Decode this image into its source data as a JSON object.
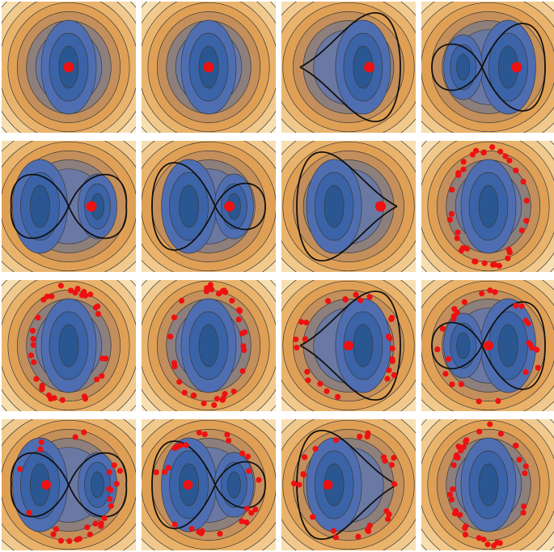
{
  "figure": {
    "palette": {
      "contour_levels": [
        "#fcefd2",
        "#f8dfb1",
        "#f1c98c",
        "#e9b36c",
        "#dfa055",
        "#c48f5b",
        "#8d7f7c",
        "#6a78a4",
        "#4f6eb2",
        "#3a63a8",
        "#2a5791"
      ],
      "contour_line": "#3a3a3a",
      "separatrix": "#111111",
      "point": "#ee1111"
    },
    "panels": [
      {
        "row": 0,
        "col": 0,
        "well_offset": 0.0,
        "curve": "none",
        "marker": "single",
        "marker_pos": [
          0.0,
          0.0
        ]
      },
      {
        "row": 0,
        "col": 1,
        "well_offset": 0.0,
        "curve": "none",
        "marker": "single",
        "marker_pos": [
          0.0,
          0.0
        ]
      },
      {
        "row": 0,
        "col": 2,
        "well_offset": 0.55,
        "curve": "loop-left",
        "marker": "single",
        "marker_pos": [
          0.55,
          0.0
        ]
      },
      {
        "row": 0,
        "col": 3,
        "well_offset": 0.75,
        "curve": "figure8-right",
        "marker": "single",
        "marker_pos": [
          0.75,
          0.0
        ]
      },
      {
        "row": 1,
        "col": 0,
        "well_offset": 0.85,
        "curve": "figure8",
        "marker": "single",
        "marker_pos": [
          0.6,
          0.0
        ]
      },
      {
        "row": 1,
        "col": 1,
        "well_offset": 0.75,
        "curve": "figure8-left",
        "marker": "single",
        "marker_pos": [
          0.55,
          0.0
        ]
      },
      {
        "row": 1,
        "col": 2,
        "well_offset": 0.55,
        "curve": "loop-right",
        "marker": "single",
        "marker_pos": [
          0.85,
          0.0
        ]
      },
      {
        "row": 1,
        "col": 3,
        "well_offset": 0.0,
        "curve": "none",
        "marker": "ring",
        "marker_pos": [
          0.0,
          0.0
        ]
      },
      {
        "row": 2,
        "col": 0,
        "well_offset": 0.0,
        "curve": "none",
        "marker": "ring",
        "marker_pos": [
          0.0,
          0.0
        ]
      },
      {
        "row": 2,
        "col": 1,
        "well_offset": 0.0,
        "curve": "none",
        "marker": "ring",
        "marker_pos": [
          0.0,
          0.0
        ]
      },
      {
        "row": 2,
        "col": 2,
        "well_offset": 0.55,
        "curve": "loop-left",
        "marker": "trail",
        "marker_pos": [
          0.0,
          0.0
        ]
      },
      {
        "row": 2,
        "col": 3,
        "well_offset": 0.75,
        "curve": "figure8-right",
        "marker": "trail",
        "marker_pos": [
          0.0,
          0.0
        ]
      },
      {
        "row": 3,
        "col": 0,
        "well_offset": 0.85,
        "curve": "figure8",
        "marker": "trail",
        "marker_pos": [
          -0.6,
          0.0
        ]
      },
      {
        "row": 3,
        "col": 1,
        "well_offset": 0.75,
        "curve": "figure8-left",
        "marker": "trail",
        "marker_pos": [
          -0.55,
          0.0
        ]
      },
      {
        "row": 3,
        "col": 2,
        "well_offset": 0.55,
        "curve": "loop-right",
        "marker": "trail",
        "marker_pos": [
          -0.55,
          0.0
        ]
      },
      {
        "row": 3,
        "col": 3,
        "well_offset": 0.0,
        "curve": "none",
        "marker": "ring",
        "marker_pos": [
          0.0,
          0.0
        ]
      }
    ]
  }
}
